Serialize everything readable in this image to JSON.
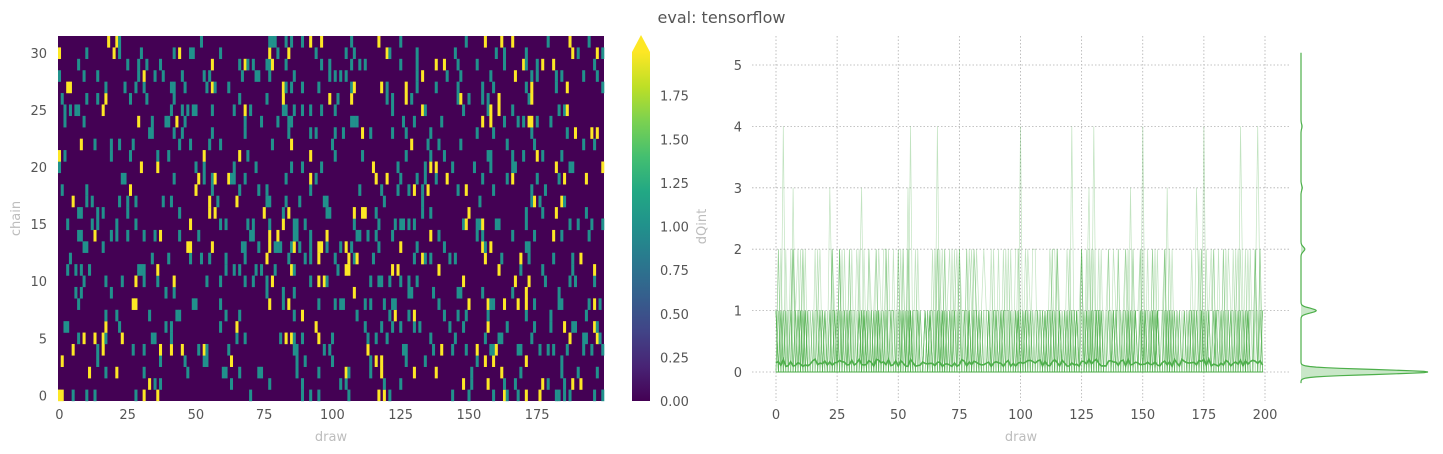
{
  "suptitle": "eval: tensorflow",
  "chart_data": [
    {
      "type": "heatmap",
      "xlabel": "draw",
      "ylabel": "chain",
      "x_range": [
        0,
        199
      ],
      "y_range": [
        0,
        31
      ],
      "x_ticks": [
        0,
        25,
        50,
        75,
        100,
        125,
        150,
        175
      ],
      "y_ticks": [
        0,
        5,
        10,
        15,
        20,
        25,
        30
      ],
      "colormap": "viridis",
      "colors": [
        "#440154",
        "#21918c",
        "#fde725"
      ],
      "value_levels": [
        0,
        1,
        2
      ],
      "density": {
        "level1": 0.1,
        "level2": 0.035
      },
      "colorbar": {
        "label": "dQint",
        "vmin": 0.0,
        "vmax": 2.0,
        "extend": "max",
        "ticks": [
          "0.00",
          "0.25",
          "0.50",
          "0.75",
          "1.00",
          "1.25",
          "1.50",
          "1.75"
        ]
      }
    },
    {
      "type": "line",
      "xlabel": "draw",
      "ylabel": "",
      "xlim": [
        -5,
        205
      ],
      "ylim": [
        -0.4,
        5.3
      ],
      "x_ticks": [
        0,
        25,
        50,
        75,
        100,
        125,
        150,
        175,
        200
      ],
      "y_ticks": [
        0,
        1,
        2,
        3,
        4,
        5
      ],
      "grid": "dotted",
      "color": "#4daf4a",
      "n_draws": 200,
      "n_chains": 32,
      "max_value": 5,
      "description": "per-chain traces (translucent) with chain-mean line around 0.15",
      "mean_level": 0.15,
      "spikes_to_4": [
        3,
        55,
        66,
        100,
        121,
        130,
        150,
        175,
        190,
        197
      ],
      "spikes_to_3": [
        7,
        22,
        35,
        54,
        128,
        145,
        160,
        172
      ],
      "marginal": {
        "type": "kde",
        "peaks": [
          {
            "y": 0,
            "height": 1.0
          },
          {
            "y": 1,
            "height": 0.12
          },
          {
            "y": 2,
            "height": 0.03
          },
          {
            "y": 3,
            "height": 0.01
          },
          {
            "y": 4,
            "height": 0.008
          }
        ]
      }
    }
  ]
}
